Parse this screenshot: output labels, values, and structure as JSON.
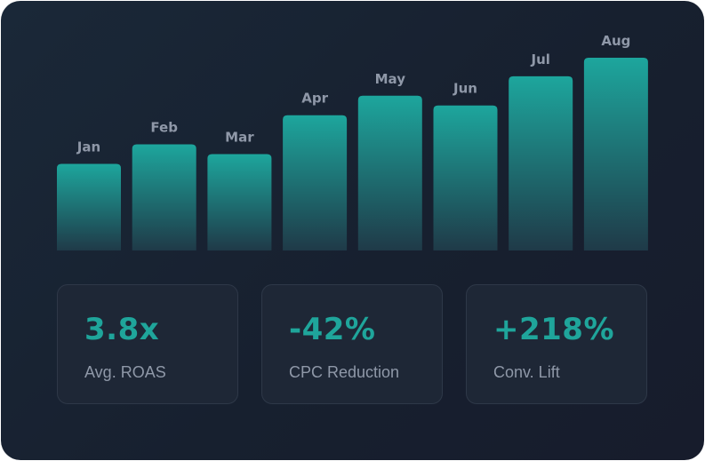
{
  "colors": {
    "accent": "#1fa59b",
    "bar_top": "#1da69d",
    "bar_bottom": "#1f3a48",
    "label": "#8f98a8",
    "card_bg": "#1e2736"
  },
  "chart_data": {
    "type": "bar",
    "title": "",
    "xlabel": "",
    "ylabel": "",
    "categories": [
      "Jan",
      "Feb",
      "Mar",
      "Apr",
      "May",
      "Jun",
      "Jul",
      "Aug"
    ],
    "values": [
      98,
      120,
      109,
      153,
      175,
      164,
      197,
      218
    ],
    "ylim": [
      0,
      220
    ],
    "grid": false,
    "legend": "none"
  },
  "stats": [
    {
      "value": "3.8x",
      "label": "Avg. ROAS"
    },
    {
      "value": "-42%",
      "label": "CPC Reduction"
    },
    {
      "value": "+218%",
      "label": "Conv. Lift"
    }
  ]
}
